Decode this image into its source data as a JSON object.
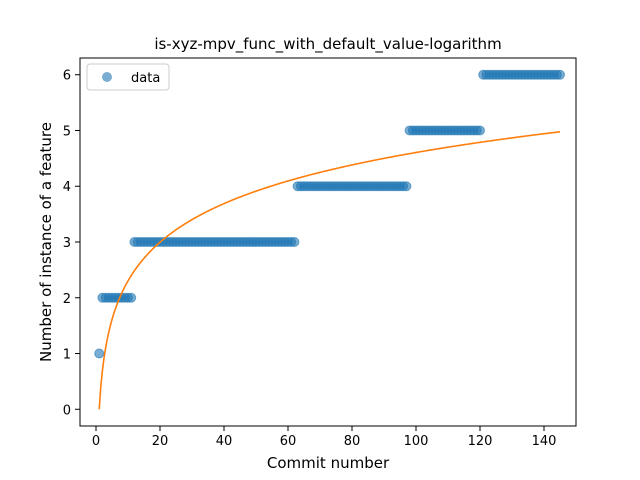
{
  "chart_data": {
    "type": "scatter",
    "title": "is-xyz-mpv_func_with_default_value-logarithm",
    "xlabel": "Commit number",
    "ylabel": "Number of instance of a feature",
    "xlim": [
      -5,
      150
    ],
    "ylim": [
      -0.3,
      6.3
    ],
    "xticks": [
      0,
      20,
      40,
      60,
      80,
      100,
      120,
      140
    ],
    "yticks": [
      0,
      1,
      2,
      3,
      4,
      5,
      6
    ],
    "legend": {
      "placement": "top-left",
      "entries": [
        "data"
      ]
    },
    "grid": false,
    "series": [
      {
        "name": "data",
        "kind": "scatter",
        "color": "#1f77b4",
        "steps": [
          {
            "x_start": 1,
            "x_end": 1,
            "y": 1
          },
          {
            "x_start": 2,
            "x_end": 11,
            "y": 2
          },
          {
            "x_start": 12,
            "x_end": 62,
            "y": 3
          },
          {
            "x_start": 63,
            "x_end": 97,
            "y": 4
          },
          {
            "x_start": 98,
            "x_end": 120,
            "y": 5
          },
          {
            "x_start": 121,
            "x_end": 145,
            "y": 6
          }
        ]
      },
      {
        "kind": "line",
        "color": "#ff7f0e",
        "equation": "y = a*ln(x)",
        "a": 1.0,
        "x_range": [
          1,
          145
        ]
      }
    ]
  }
}
